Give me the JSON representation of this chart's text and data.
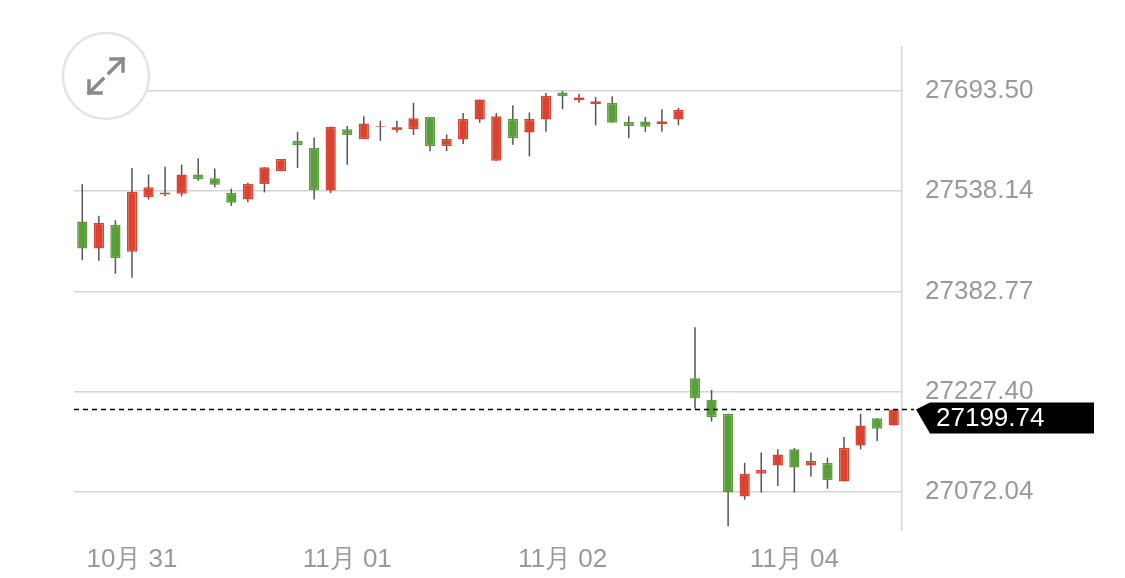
{
  "chart_data": {
    "type": "candlestick",
    "categories": [
      null,
      null,
      null,
      "10月 31",
      null,
      null,
      null,
      null,
      null,
      null,
      null,
      null,
      null,
      null,
      null,
      null,
      "11月 01",
      null,
      null,
      null,
      null,
      null,
      null,
      null,
      null,
      null,
      null,
      null,
      null,
      "11月 02",
      null,
      null,
      null,
      null,
      null,
      null,
      null,
      null,
      null,
      null,
      null,
      null,
      null,
      "11月 04",
      null,
      null,
      null,
      null,
      null,
      null
    ],
    "ohlc": [
      [
        27491,
        27549,
        27431,
        27449
      ],
      [
        27449,
        27500,
        27430,
        27489
      ],
      [
        27486,
        27493,
        27410,
        27434
      ],
      [
        27444,
        27574,
        27404,
        27537
      ],
      [
        27529,
        27564,
        27525,
        27544
      ],
      [
        27533,
        27576,
        27530,
        27536
      ],
      [
        27534,
        27579,
        27530,
        27564
      ],
      [
        27564,
        27589,
        27554,
        27557
      ],
      [
        27558,
        27573,
        27544,
        27548
      ],
      [
        27535,
        27542,
        27515,
        27520
      ],
      [
        27525,
        27551,
        27521,
        27549
      ],
      [
        27549,
        27575,
        27536,
        27575
      ],
      [
        27569,
        27588,
        27569,
        27588
      ],
      [
        27616,
        27630,
        27574,
        27609
      ],
      [
        27605,
        27621,
        27525,
        27540
      ],
      [
        27539,
        27638,
        27535,
        27638
      ],
      [
        27634,
        27639,
        27579,
        27625
      ],
      [
        27619,
        27654,
        27619,
        27643
      ],
      [
        27638,
        27647,
        27616,
        27639
      ],
      [
        27635,
        27647,
        27629,
        27635
      ],
      [
        27634,
        27675,
        27625,
        27651
      ],
      [
        27653,
        27653,
        27600,
        27608
      ],
      [
        27608,
        27626,
        27600,
        27619
      ],
      [
        27618,
        27659,
        27611,
        27650
      ],
      [
        27649,
        27680,
        27644,
        27680
      ],
      [
        27585,
        27659,
        27585,
        27654
      ],
      [
        27650,
        27671,
        27610,
        27620
      ],
      [
        27629,
        27660,
        27592,
        27650
      ],
      [
        27649,
        27690,
        27630,
        27686
      ],
      [
        27691,
        27693,
        27665,
        27685
      ],
      [
        27681,
        27689,
        27675,
        27681
      ],
      [
        27675,
        27684,
        27640,
        27675
      ],
      [
        27675,
        27685,
        27644,
        27644
      ],
      [
        27645,
        27654,
        27620,
        27639
      ],
      [
        27646,
        27653,
        27630,
        27638
      ],
      [
        27644,
        27665,
        27630,
        27644
      ],
      [
        27649,
        27667,
        27640,
        27664
      ],
      [
        27248,
        27327,
        27201,
        27217
      ],
      [
        27215,
        27230,
        27181,
        27188
      ],
      [
        27193,
        27193,
        27019,
        27071
      ],
      [
        27065,
        27117,
        27060,
        27100
      ],
      [
        27100,
        27133,
        27071,
        27106
      ],
      [
        27113,
        27138,
        27081,
        27130
      ],
      [
        27138,
        27140,
        27071,
        27110
      ],
      [
        27113,
        27133,
        27096,
        27120
      ],
      [
        27117,
        27125,
        27077,
        27090
      ],
      [
        27088,
        27157,
        27088,
        27140
      ],
      [
        27144,
        27193,
        27138,
        27175
      ],
      [
        27186,
        27186,
        27151,
        27170
      ],
      [
        27175,
        27199.74,
        27175,
        27199.74
      ]
    ],
    "colors": [
      "#5a9e3c",
      "#d9432f",
      "#5a9e3c",
      "#d9432f",
      "#d9432f",
      "#d9432f",
      "#d9432f",
      "#5a9e3c",
      "#5a9e3c",
      "#5a9e3c",
      "#d9432f",
      "#d9432f",
      "#d9432f",
      "#5a9e3c",
      "#5a9e3c",
      "#d9432f",
      "#5a9e3c",
      "#d9432f",
      "#d9432f",
      "#d9432f",
      "#d9432f",
      "#5a9e3c",
      "#d9432f",
      "#d9432f",
      "#d9432f",
      "#d9432f",
      "#5a9e3c",
      "#d9432f",
      "#d9432f",
      "#5a9e3c",
      "#d9432f",
      "#d9432f",
      "#5a9e3c",
      "#5a9e3c",
      "#5a9e3c",
      "#d9432f",
      "#d9432f",
      "#5a9e3c",
      "#5a9e3c",
      "#5a9e3c",
      "#d9432f",
      "#d9432f",
      "#d9432f",
      "#5a9e3c",
      "#d9432f",
      "#5a9e3c",
      "#d9432f",
      "#d9432f",
      "#5a9e3c",
      "#d9432f"
    ],
    "ylim": [
      27013,
      27762
    ],
    "yticks": [
      {
        "value": 27072.04,
        "label": "27072.04"
      },
      {
        "value": 27227.4,
        "label": "27227.40"
      },
      {
        "value": 27382.77,
        "label": "27382.77"
      },
      {
        "value": 27538.14,
        "label": "27538.14"
      },
      {
        "value": 27693.5,
        "label": "27693.50"
      }
    ],
    "grid": "y",
    "ref_lines": [
      {
        "axis": "y",
        "value": 27199.74,
        "label": "27199.74",
        "color": "#000000",
        "line_style": "dashed"
      }
    ]
  }
}
